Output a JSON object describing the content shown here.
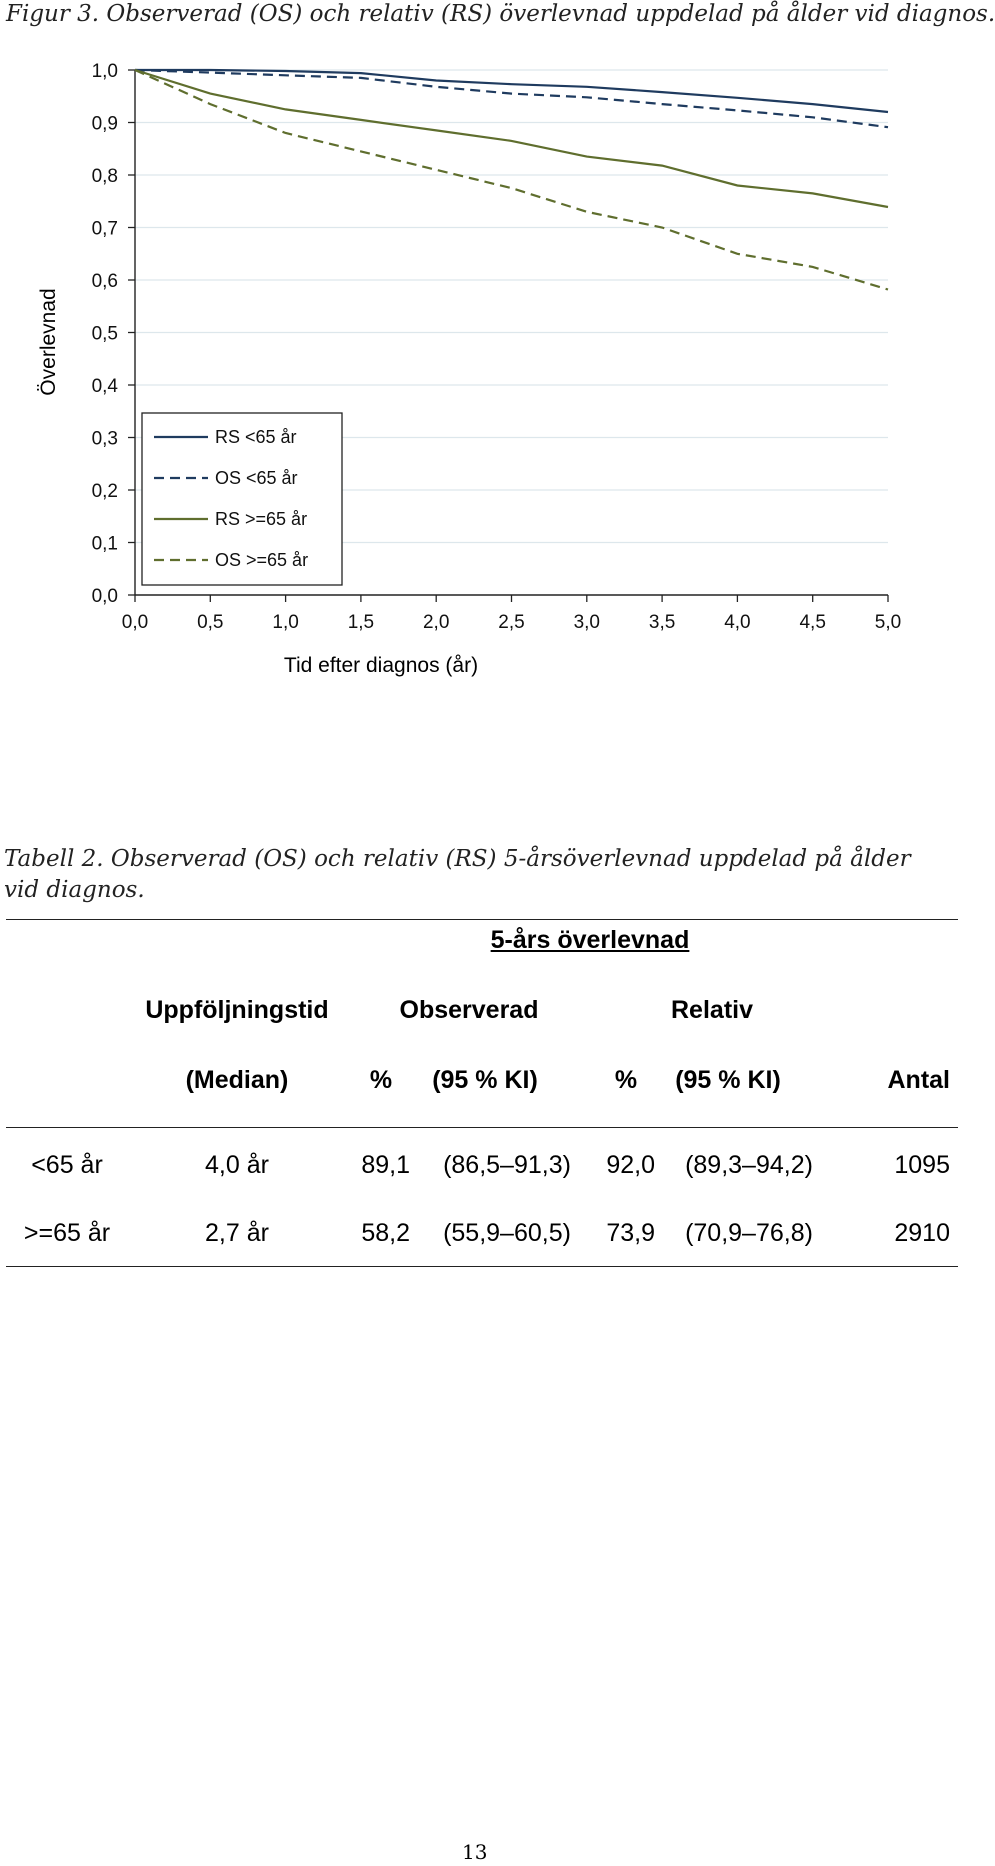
{
  "figure_caption": "Figur 3. Observerad (OS) och relativ (RS) överlevnad uppdelad på ålder vid diagnos.",
  "chart_data": {
    "type": "line",
    "title": "",
    "xlabel": "Tid efter diagnos (år)",
    "ylabel": "Överlevnad",
    "xlim": [
      0,
      5
    ],
    "ylim": [
      0,
      1
    ],
    "xticks": [
      "0,0",
      "0,5",
      "1,0",
      "1,5",
      "2,0",
      "2,5",
      "3,0",
      "3,5",
      "4,0",
      "4,5",
      "5,0"
    ],
    "yticks": [
      "0,0",
      "0,1",
      "0,2",
      "0,3",
      "0,4",
      "0,5",
      "0,6",
      "0,7",
      "0,8",
      "0,9",
      "1,0"
    ],
    "grid": "horizontal",
    "legend_position": "lower-left",
    "x": [
      0,
      0.5,
      1.0,
      1.5,
      2.0,
      2.5,
      3.0,
      3.5,
      4.0,
      4.5,
      5.0
    ],
    "series": [
      {
        "name": "RS <65 år",
        "color": "#1f3b5f",
        "dash": "solid",
        "values": [
          1.0,
          1.0,
          0.998,
          0.994,
          0.98,
          0.973,
          0.968,
          0.958,
          0.947,
          0.935,
          0.92
        ]
      },
      {
        "name": "OS <65 år",
        "color": "#1f3b5f",
        "dash": "dashed",
        "values": [
          1.0,
          0.995,
          0.99,
          0.985,
          0.968,
          0.955,
          0.948,
          0.935,
          0.923,
          0.91,
          0.891
        ]
      },
      {
        "name": "RS >=65 år",
        "color": "#5f6e2e",
        "dash": "solid",
        "values": [
          1.0,
          0.955,
          0.925,
          0.905,
          0.885,
          0.865,
          0.835,
          0.818,
          0.78,
          0.765,
          0.739
        ]
      },
      {
        "name": "OS >=65 år",
        "color": "#5f6e2e",
        "dash": "dashed",
        "values": [
          1.0,
          0.935,
          0.88,
          0.845,
          0.81,
          0.775,
          0.73,
          0.7,
          0.65,
          0.625,
          0.582
        ]
      }
    ]
  },
  "table": {
    "caption": "Tabell 2. Observerad (OS) och relativ (RS) 5-årsöverlevnad uppdelad på ålder vid diagnos.",
    "group_header": "5-års överlevnad",
    "header1": {
      "followup": "Uppföljningstid",
      "observed": "Observerad",
      "relative": "Relativ"
    },
    "header2": {
      "median": "(Median)",
      "obs_pct": "%",
      "obs_ci": "(95 % KI)",
      "rel_pct": "%",
      "rel_ci": "(95 % KI)",
      "count": "Antal"
    },
    "rows": [
      {
        "group": "<65 år",
        "median": "4,0 år",
        "obs_pct": "89,1",
        "obs_ci": "(86,5–91,3)",
        "rel_pct": "92,0",
        "rel_ci": "(89,3–94,2)",
        "count": "1095"
      },
      {
        "group": ">=65 år",
        "median": "2,7 år",
        "obs_pct": "58,2",
        "obs_ci": "(55,9–60,5)",
        "rel_pct": "73,9",
        "rel_ci": "(70,9–76,8)",
        "count": "2910"
      }
    ]
  },
  "page_number": "13"
}
